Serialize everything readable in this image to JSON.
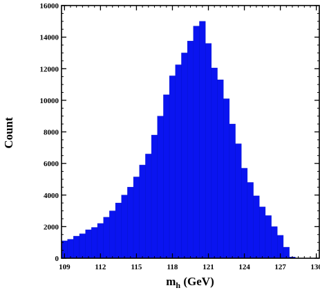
{
  "chart_data": {
    "type": "bar",
    "title": "",
    "xlabel_main": "m",
    "xlabel_sub": "h",
    "xlabel_unit": " (GeV)",
    "ylabel": "Count",
    "xlim": [
      108.75,
      130.25
    ],
    "ylim": [
      0,
      16000
    ],
    "xticks": [
      109,
      112,
      115,
      118,
      121,
      124,
      127,
      130
    ],
    "yticks": [
      0,
      2000,
      4000,
      6000,
      8000,
      10000,
      12000,
      14000,
      16000
    ],
    "bin_width": 0.5,
    "x": [
      108.75,
      109.25,
      109.75,
      110.25,
      110.75,
      111.25,
      111.75,
      112.25,
      112.75,
      113.25,
      113.75,
      114.25,
      114.75,
      115.25,
      115.75,
      116.25,
      116.75,
      117.25,
      117.75,
      118.25,
      118.75,
      119.25,
      119.75,
      120.25,
      120.75,
      121.25,
      121.75,
      122.25,
      122.75,
      123.25,
      123.75,
      124.25,
      124.75,
      125.25,
      125.75,
      126.25,
      126.75,
      127.25,
      127.75
    ],
    "values": [
      1100,
      1200,
      1400,
      1550,
      1800,
      1950,
      2200,
      2600,
      3000,
      3500,
      4000,
      4500,
      5150,
      5900,
      6600,
      7800,
      9000,
      10350,
      11550,
      12250,
      13000,
      13750,
      14700,
      15000,
      13600,
      12050,
      11300,
      10100,
      8500,
      7250,
      5700,
      4800,
      3950,
      3250,
      2700,
      2000,
      1450,
      700,
      80
    ],
    "bar_color": "#0a14f0",
    "grid": false,
    "legend": "none"
  }
}
